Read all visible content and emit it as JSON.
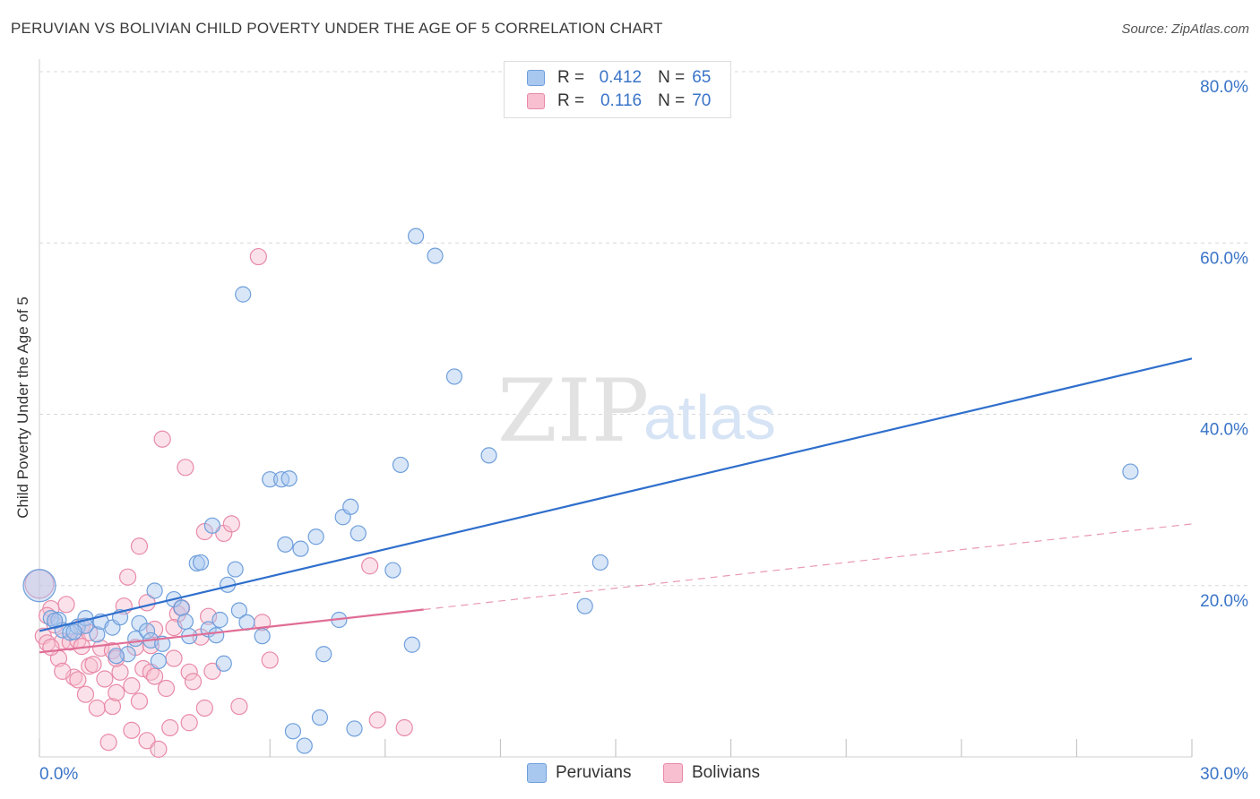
{
  "title": "PERUVIAN VS BOLIVIAN CHILD POVERTY UNDER THE AGE OF 5 CORRELATION CHART",
  "source": "Source: ZipAtlas.com",
  "watermark": {
    "zip": "ZIP",
    "atlas": "atlas"
  },
  "legend": {
    "peruvians": {
      "r_label": "R =",
      "r_value": "0.412",
      "n_label": "N =",
      "n_value": "65"
    },
    "bolivians": {
      "r_label": "R =",
      "r_value": "0.116",
      "n_label": "N =",
      "n_value": "70"
    }
  },
  "bottom_legend": {
    "peruvians": "Peruvians",
    "bolivians": "Bolivians"
  },
  "colors": {
    "peruvian_fill": "#a9c8f0",
    "peruvian_stroke": "#6f9fdb",
    "peruvian_line": "#2f6fcc",
    "bolivian_fill": "#f7bfd0",
    "bolivian_stroke": "#e88aa8",
    "bolivian_line": "#e06d96",
    "tick_label": "#3a74c7",
    "grid": "#d8d8d8"
  },
  "chart_data": {
    "type": "scatter",
    "title": "PERUVIAN VS BOLIVIAN CHILD POVERTY UNDER THE AGE OF 5 CORRELATION CHART",
    "xlabel": "",
    "ylabel": "Child Poverty Under the Age of 5",
    "xlim": [
      0,
      30
    ],
    "ylim": [
      0,
      80
    ],
    "x_tick_labels": [
      {
        "value": 0,
        "label": "0.0%"
      },
      {
        "value": 30,
        "label": "30.0%"
      }
    ],
    "y_tick_labels": [
      {
        "value": 20,
        "label": "20.0%"
      },
      {
        "value": 40,
        "label": "40.0%"
      },
      {
        "value": 60,
        "label": "60.0%"
      },
      {
        "value": 80,
        "label": "80.0%"
      }
    ],
    "series": [
      {
        "name": "Peruvians",
        "trend": {
          "x": [
            0,
            30
          ],
          "y": [
            14.7,
            46.5
          ],
          "dashed_from": null
        },
        "points": [
          [
            0.0,
            20.0
          ],
          [
            0.3,
            16.2
          ],
          [
            0.5,
            16.0
          ],
          [
            0.6,
            14.8
          ],
          [
            0.8,
            14.5
          ],
          [
            1.0,
            15.2
          ],
          [
            1.2,
            16.2
          ],
          [
            1.5,
            14.3
          ],
          [
            1.6,
            15.8
          ],
          [
            1.9,
            15.1
          ],
          [
            2.1,
            16.3
          ],
          [
            2.3,
            12.0
          ],
          [
            2.5,
            13.8
          ],
          [
            2.6,
            15.6
          ],
          [
            2.8,
            14.7
          ],
          [
            2.9,
            13.6
          ],
          [
            3.0,
            19.4
          ],
          [
            3.2,
            13.2
          ],
          [
            3.1,
            11.2
          ],
          [
            3.5,
            18.4
          ],
          [
            3.7,
            17.4
          ],
          [
            3.8,
            15.8
          ],
          [
            3.9,
            14.1
          ],
          [
            4.1,
            22.6
          ],
          [
            4.2,
            22.7
          ],
          [
            4.4,
            14.9
          ],
          [
            4.5,
            27.0
          ],
          [
            4.6,
            14.2
          ],
          [
            4.7,
            16.0
          ],
          [
            4.8,
            10.9
          ],
          [
            4.9,
            20.1
          ],
          [
            5.1,
            21.9
          ],
          [
            5.2,
            17.1
          ],
          [
            5.4,
            15.7
          ],
          [
            5.3,
            54.0
          ],
          [
            5.8,
            14.1
          ],
          [
            6.0,
            32.4
          ],
          [
            6.3,
            32.4
          ],
          [
            6.5,
            32.5
          ],
          [
            6.6,
            3.0
          ],
          [
            6.4,
            24.8
          ],
          [
            6.8,
            24.3
          ],
          [
            6.9,
            1.3
          ],
          [
            7.2,
            25.7
          ],
          [
            7.3,
            4.6
          ],
          [
            7.4,
            12.0
          ],
          [
            7.8,
            16.0
          ],
          [
            7.9,
            28.0
          ],
          [
            8.1,
            29.2
          ],
          [
            8.2,
            3.3
          ],
          [
            8.3,
            26.1
          ],
          [
            9.2,
            21.8
          ],
          [
            9.4,
            34.1
          ],
          [
            9.7,
            13.1
          ],
          [
            9.8,
            60.8
          ],
          [
            10.3,
            58.5
          ],
          [
            10.8,
            44.4
          ],
          [
            11.7,
            35.2
          ],
          [
            14.2,
            17.6
          ],
          [
            14.6,
            22.7
          ],
          [
            28.4,
            33.3
          ],
          [
            1.2,
            15.3
          ],
          [
            2.0,
            11.8
          ],
          [
            0.4,
            15.9
          ],
          [
            0.9,
            14.6
          ]
        ]
      },
      {
        "name": "Bolivians",
        "trend": {
          "x": [
            0,
            30
          ],
          "y": [
            12.2,
            27.2
          ],
          "solid_until_x": 10.0
        },
        "points": [
          [
            0.0,
            20.2
          ],
          [
            0.1,
            14.1
          ],
          [
            0.2,
            13.3
          ],
          [
            0.3,
            17.3
          ],
          [
            0.4,
            15.4
          ],
          [
            0.5,
            11.5
          ],
          [
            0.6,
            13.5
          ],
          [
            0.7,
            17.8
          ],
          [
            0.8,
            13.4
          ],
          [
            0.9,
            9.3
          ],
          [
            1.0,
            13.6
          ],
          [
            1.1,
            12.9
          ],
          [
            1.2,
            7.3
          ],
          [
            1.3,
            10.6
          ],
          [
            1.4,
            10.8
          ],
          [
            1.5,
            5.7
          ],
          [
            1.6,
            12.7
          ],
          [
            1.7,
            9.1
          ],
          [
            1.8,
            1.7
          ],
          [
            1.9,
            5.9
          ],
          [
            1.9,
            12.4
          ],
          [
            2.0,
            7.5
          ],
          [
            2.1,
            9.9
          ],
          [
            2.2,
            17.6
          ],
          [
            2.3,
            21.0
          ],
          [
            2.4,
            8.3
          ],
          [
            2.4,
            3.1
          ],
          [
            2.5,
            12.8
          ],
          [
            2.6,
            6.5
          ],
          [
            2.6,
            24.6
          ],
          [
            2.7,
            10.3
          ],
          [
            2.8,
            1.9
          ],
          [
            2.8,
            18.0
          ],
          [
            2.9,
            9.9
          ],
          [
            3.0,
            14.9
          ],
          [
            3.0,
            9.4
          ],
          [
            3.1,
            0.9
          ],
          [
            3.2,
            37.1
          ],
          [
            3.3,
            8.0
          ],
          [
            3.4,
            3.4
          ],
          [
            3.5,
            11.5
          ],
          [
            3.6,
            16.7
          ],
          [
            3.7,
            17.4
          ],
          [
            3.8,
            33.8
          ],
          [
            3.9,
            4.0
          ],
          [
            3.9,
            9.9
          ],
          [
            4.0,
            8.8
          ],
          [
            4.3,
            26.3
          ],
          [
            4.3,
            5.7
          ],
          [
            4.4,
            16.4
          ],
          [
            4.5,
            10.0
          ],
          [
            4.8,
            26.1
          ],
          [
            5.0,
            27.2
          ],
          [
            5.2,
            5.9
          ],
          [
            5.7,
            58.4
          ],
          [
            5.8,
            15.7
          ],
          [
            6.0,
            11.3
          ],
          [
            8.6,
            22.3
          ],
          [
            8.8,
            4.3
          ],
          [
            9.5,
            3.4
          ],
          [
            0.3,
            12.8
          ],
          [
            1.0,
            9.0
          ],
          [
            1.1,
            15.2
          ],
          [
            2.0,
            11.5
          ],
          [
            3.5,
            15.1
          ],
          [
            0.6,
            10.0
          ],
          [
            1.3,
            14.5
          ],
          [
            2.9,
            13.0
          ],
          [
            4.2,
            14.0
          ],
          [
            0.2,
            16.5
          ]
        ]
      }
    ]
  }
}
